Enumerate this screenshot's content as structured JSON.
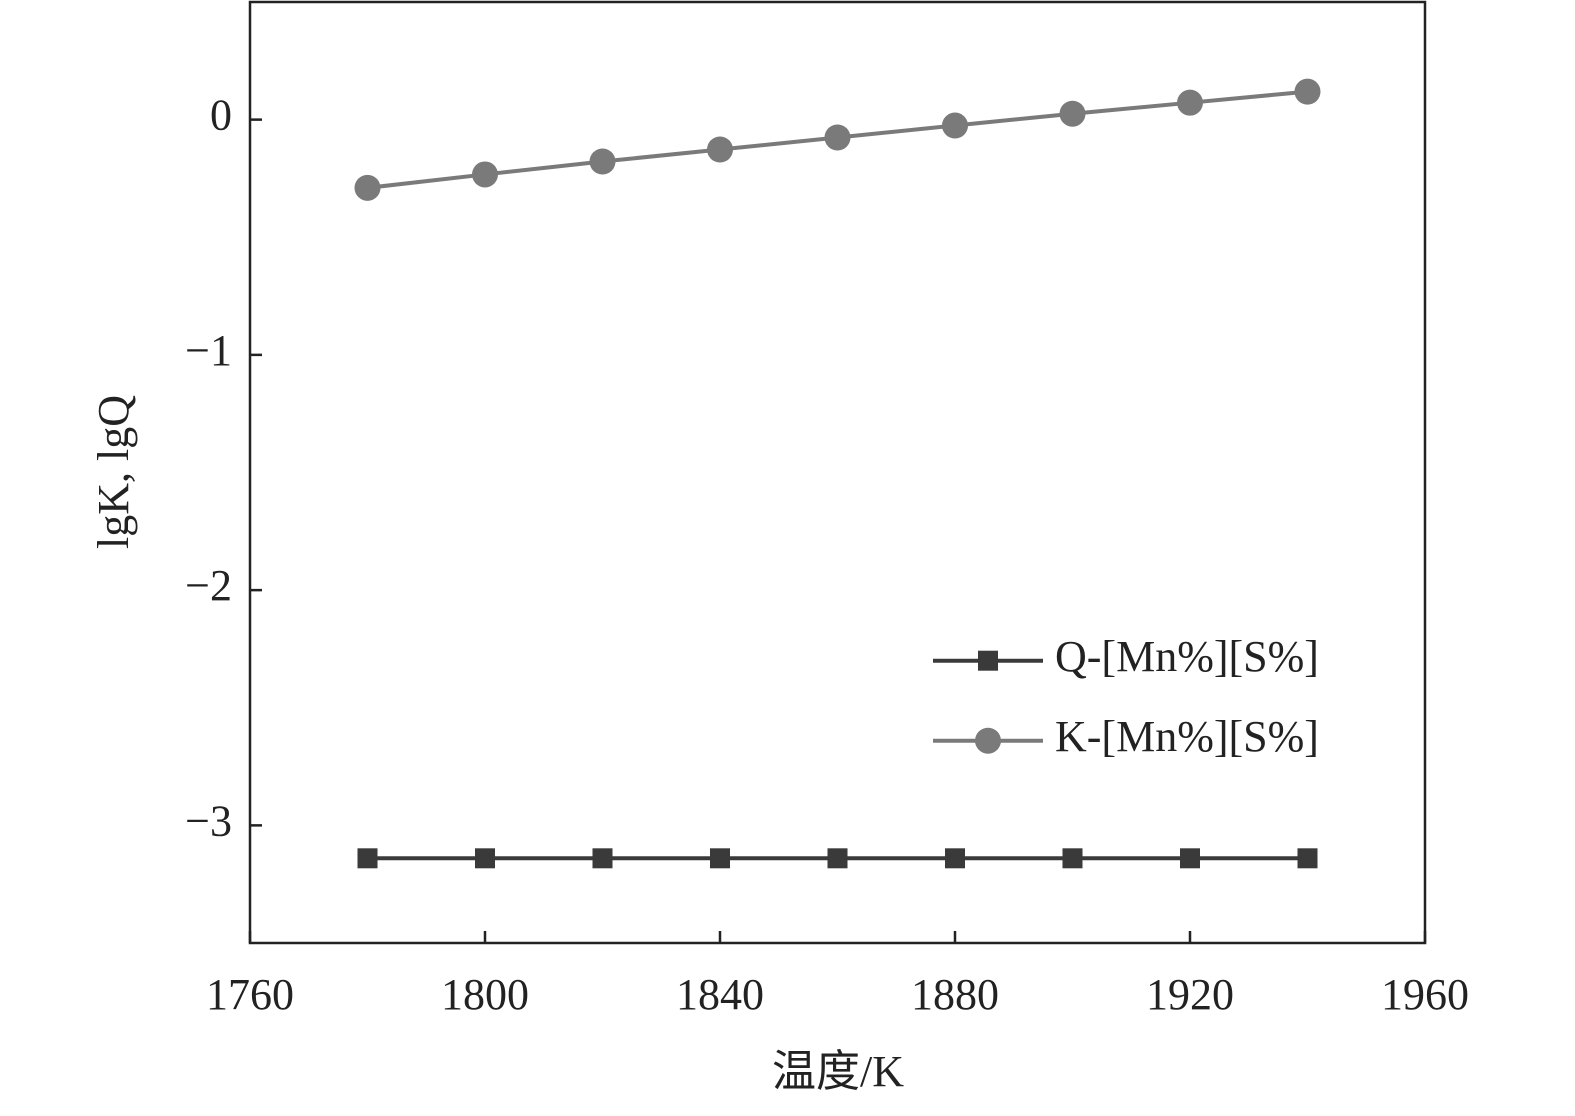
{
  "chart_data": {
    "type": "line",
    "x_label": "温度/K",
    "y_label": "lgK, lgQ",
    "x": [
      1780,
      1800,
      1820,
      1840,
      1860,
      1880,
      1900,
      1920,
      1940
    ],
    "series": [
      {
        "name": "Q-[Mn%][S%]",
        "color": "#3a3a3a",
        "marker": "square",
        "values": [
          -3.14,
          -3.14,
          -3.14,
          -3.14,
          -3.14,
          -3.14,
          -3.14,
          -3.14,
          -3.14
        ]
      },
      {
        "name": "K-[Mn%][S%]",
        "color": "#7a7a7a",
        "marker": "circle",
        "values": [
          -0.29,
          -0.233,
          -0.178,
          -0.127,
          -0.076,
          -0.025,
          0.025,
          0.072,
          0.119
        ]
      }
    ],
    "xlim": [
      1760,
      1960
    ],
    "xticks": [
      1760,
      1800,
      1840,
      1880,
      1920,
      1960
    ],
    "ylim": [
      -3.5,
      0.5
    ],
    "yticks": [
      {
        "value": -3,
        "label": "−3"
      },
      {
        "value": -2,
        "label": "−2"
      },
      {
        "value": -1,
        "label": "−1"
      },
      0
    ],
    "legend": "center right",
    "grid": false
  }
}
